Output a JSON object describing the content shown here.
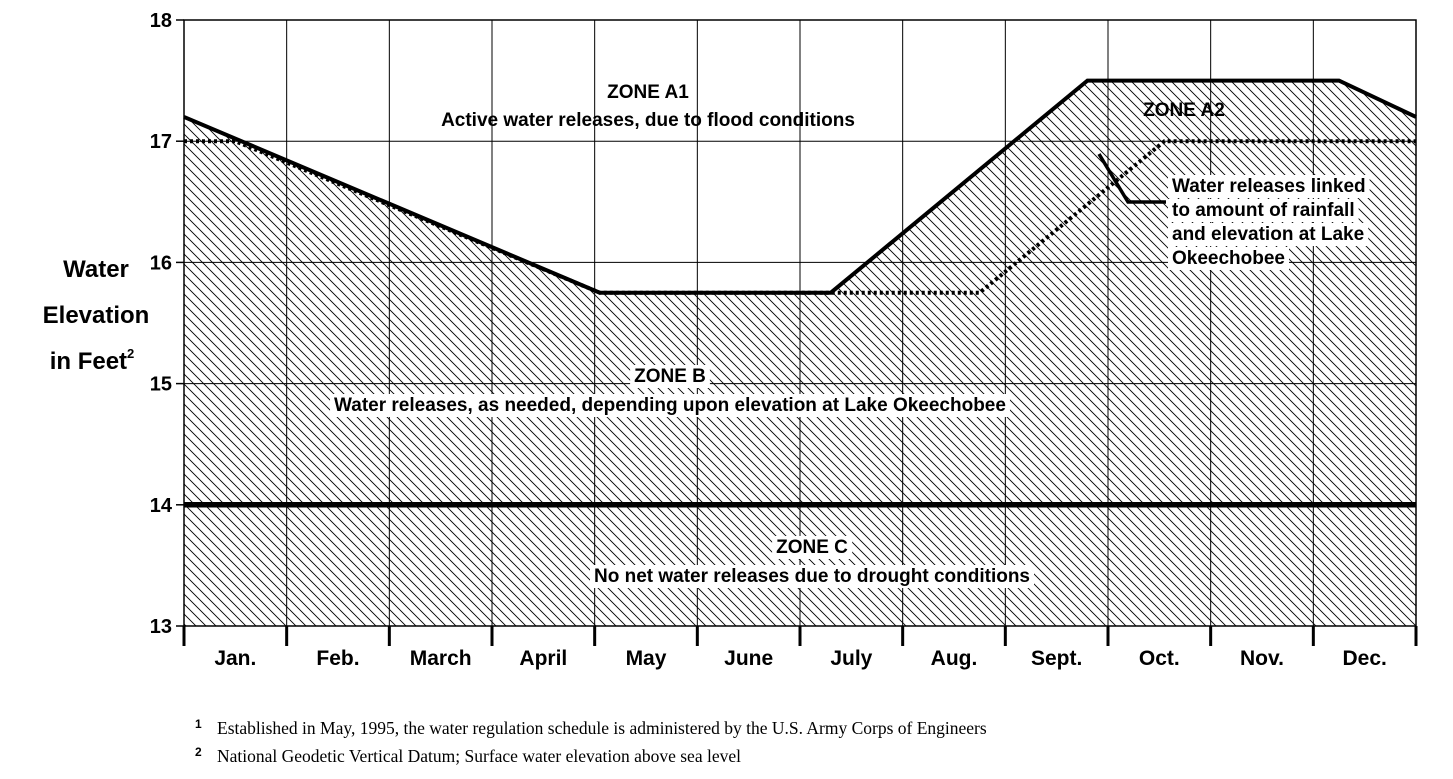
{
  "chart_data": {
    "type": "line",
    "title": "",
    "xlabel": "",
    "ylabel": "Water Elevation in Feet",
    "ylabel_lines": [
      "Water",
      "Elevation",
      "in Feet"
    ],
    "ylabel_superscript": "2",
    "categories": [
      "Jan.",
      "Feb.",
      "March",
      "April",
      "May",
      "June",
      "July",
      "Aug.",
      "Sept.",
      "Oct.",
      "Nov.",
      "Dec."
    ],
    "ylim": [
      13,
      18
    ],
    "yticks": [
      "13",
      "14",
      "15",
      "16",
      "17",
      "18"
    ],
    "grid": true,
    "series": [
      {
        "style": "solid",
        "x": [
          0,
          4.05,
          6.3,
          8.8,
          11.25,
          12
        ],
        "y": [
          17.2,
          15.75,
          15.75,
          17.5,
          17.5,
          17.2
        ]
      },
      {
        "style": "dotted",
        "x": [
          0,
          0.5,
          4.05,
          7.75,
          9.55,
          12
        ],
        "y": [
          17.0,
          17.0,
          15.75,
          15.75,
          17.0,
          17.0
        ]
      },
      {
        "style": "thick",
        "x": [
          0,
          12
        ],
        "y": [
          14,
          14
        ]
      }
    ],
    "annotations": [
      {
        "id": "zone-a1",
        "lines": [
          "ZONE A1",
          "Active water releases, due to flood conditions"
        ]
      },
      {
        "id": "zone-a2",
        "lines": [
          "ZONE A2"
        ]
      },
      {
        "id": "zone-a2-note",
        "lines": [
          "Water releases linked",
          "to amount of rainfall",
          "and elevation at Lake",
          "Okeechobee"
        ]
      },
      {
        "id": "zone-b",
        "lines": [
          "ZONE B",
          "Water releases, as needed, depending upon elevation at Lake Okeechobee"
        ]
      },
      {
        "id": "zone-c",
        "lines": [
          "ZONE C",
          "No net water releases due to drought conditions"
        ]
      }
    ]
  },
  "footnotes": [
    {
      "mark": "1",
      "text": "Established in May, 1995, the water regulation schedule is administered by the U.S. Army Corps of Engineers"
    },
    {
      "mark": "2",
      "text": "National Geodetic Vertical Datum; Surface water elevation above sea level"
    }
  ]
}
